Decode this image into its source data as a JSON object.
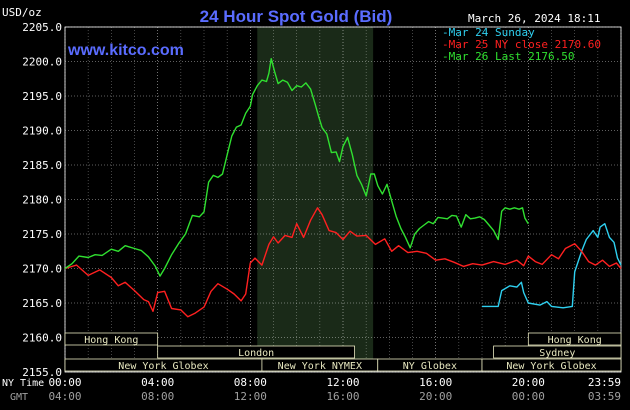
{
  "header": {
    "title": "24 Hour Spot Gold (Bid)",
    "timestamp": "March 26, 2024 18:11",
    "site": "www.kitco.com",
    "unit": "USD/oz"
  },
  "colors": {
    "sunday": "#2fd0f0",
    "close": "#ff2020",
    "last": "#30e030",
    "title": "#5a6cff",
    "grid": "#ffffff",
    "session_fill": "#1a2a18",
    "band_bg": "#000000",
    "band_text": "#e8e8c0",
    "axis_text": "#ffffff",
    "gmt_text": "#a0a0a0"
  },
  "chart_data": {
    "type": "line",
    "title": "24 Hour Spot Gold (Bid)",
    "ylabel": "USD/oz",
    "ylim": [
      2155,
      2205
    ],
    "y_ticks": [
      2155,
      2160,
      2165,
      2170,
      2175,
      2180,
      2185,
      2190,
      2195,
      2200,
      2205
    ],
    "y_tick_labels": [
      "2155.0",
      "2160.0",
      "2165.0",
      "2170.0",
      "2175.0",
      "2180.0",
      "2185.0",
      "2190.0",
      "2195.0",
      "2200.0",
      "2205.0"
    ],
    "xlim": [
      0,
      24
    ],
    "x_ticks": [
      0,
      4,
      8,
      12,
      16,
      20,
      24
    ],
    "x_tick_labels_ny": [
      "00:00",
      "04:00",
      "08:00",
      "12:00",
      "16:00",
      "20:00",
      "23:59"
    ],
    "x_tick_labels_gmt": [
      "04:00",
      "08:00",
      "12:00",
      "16:00",
      "20:00",
      "00:00",
      "03:59"
    ],
    "row_label_ny": "NY Time",
    "row_label_gmt": "GMT",
    "legend_position": "top-right",
    "grid": true,
    "session_shade": [
      8.3,
      13.3
    ],
    "series": [
      {
        "name": "Mar 24 Sunday",
        "color_key": "sunday",
        "points": [
          [
            18.0,
            2164.5
          ],
          [
            18.7,
            2164.5
          ],
          [
            18.85,
            2166.8
          ],
          [
            19.2,
            2167.5
          ],
          [
            19.5,
            2167.3
          ],
          [
            19.7,
            2168.0
          ],
          [
            19.8,
            2166.5
          ],
          [
            20.0,
            2165.0
          ],
          [
            20.5,
            2164.7
          ],
          [
            20.8,
            2165.2
          ],
          [
            21.0,
            2164.5
          ],
          [
            21.5,
            2164.3
          ],
          [
            21.9,
            2164.5
          ],
          [
            22.0,
            2169.5
          ],
          [
            22.3,
            2172.5
          ],
          [
            22.5,
            2174.2
          ],
          [
            22.8,
            2175.5
          ],
          [
            23.0,
            2174.5
          ],
          [
            23.1,
            2176.0
          ],
          [
            23.3,
            2176.5
          ],
          [
            23.5,
            2174.5
          ],
          [
            23.7,
            2173.8
          ],
          [
            23.85,
            2171.5
          ],
          [
            24.0,
            2170.5
          ]
        ]
      },
      {
        "name": "Mar 25 NY close 2170.60",
        "color_key": "close",
        "points": [
          [
            0.0,
            2170.0
          ],
          [
            0.5,
            2170.5
          ],
          [
            1.0,
            2169.0
          ],
          [
            1.5,
            2169.8
          ],
          [
            2.0,
            2168.7
          ],
          [
            2.3,
            2167.5
          ],
          [
            2.6,
            2168.0
          ],
          [
            3.0,
            2166.8
          ],
          [
            3.4,
            2165.5
          ],
          [
            3.6,
            2165.2
          ],
          [
            3.8,
            2163.8
          ],
          [
            4.0,
            2166.5
          ],
          [
            4.3,
            2166.7
          ],
          [
            4.6,
            2164.2
          ],
          [
            5.0,
            2164.0
          ],
          [
            5.3,
            2163.0
          ],
          [
            5.6,
            2163.5
          ],
          [
            6.0,
            2164.4
          ],
          [
            6.3,
            2166.7
          ],
          [
            6.6,
            2167.8
          ],
          [
            7.0,
            2167.0
          ],
          [
            7.3,
            2166.3
          ],
          [
            7.6,
            2165.3
          ],
          [
            7.8,
            2166.3
          ],
          [
            8.0,
            2170.8
          ],
          [
            8.2,
            2171.5
          ],
          [
            8.5,
            2170.5
          ],
          [
            8.8,
            2173.5
          ],
          [
            9.0,
            2174.6
          ],
          [
            9.2,
            2173.7
          ],
          [
            9.5,
            2174.8
          ],
          [
            9.8,
            2174.5
          ],
          [
            10.0,
            2176.5
          ],
          [
            10.3,
            2174.5
          ],
          [
            10.6,
            2177.0
          ],
          [
            10.9,
            2178.8
          ],
          [
            11.1,
            2177.8
          ],
          [
            11.4,
            2175.5
          ],
          [
            11.7,
            2175.2
          ],
          [
            12.0,
            2174.2
          ],
          [
            12.3,
            2175.4
          ],
          [
            12.6,
            2174.7
          ],
          [
            13.0,
            2174.8
          ],
          [
            13.4,
            2173.5
          ],
          [
            13.8,
            2174.3
          ],
          [
            14.1,
            2172.5
          ],
          [
            14.4,
            2173.3
          ],
          [
            14.8,
            2172.3
          ],
          [
            15.2,
            2172.5
          ],
          [
            15.6,
            2172.2
          ],
          [
            16.0,
            2171.2
          ],
          [
            16.4,
            2171.4
          ],
          [
            16.8,
            2170.9
          ],
          [
            17.2,
            2170.3
          ],
          [
            17.6,
            2170.7
          ],
          [
            18.0,
            2170.5
          ],
          [
            18.5,
            2171.0
          ],
          [
            19.0,
            2170.6
          ],
          [
            19.5,
            2171.2
          ],
          [
            19.8,
            2170.4
          ],
          [
            20.0,
            2171.8
          ],
          [
            20.3,
            2171.0
          ],
          [
            20.6,
            2170.6
          ],
          [
            21.0,
            2172.0
          ],
          [
            21.3,
            2171.4
          ],
          [
            21.6,
            2172.9
          ],
          [
            22.0,
            2173.6
          ],
          [
            22.3,
            2172.5
          ],
          [
            22.6,
            2171.0
          ],
          [
            22.9,
            2170.5
          ],
          [
            23.2,
            2171.2
          ],
          [
            23.5,
            2170.3
          ],
          [
            23.8,
            2170.8
          ],
          [
            24.0,
            2170.0
          ]
        ]
      },
      {
        "name": "Mar 26 Last 2176.50",
        "color_key": "last",
        "points": [
          [
            0.0,
            2170.0
          ],
          [
            0.3,
            2170.7
          ],
          [
            0.6,
            2171.8
          ],
          [
            1.0,
            2171.6
          ],
          [
            1.3,
            2172.0
          ],
          [
            1.6,
            2171.9
          ],
          [
            2.0,
            2172.8
          ],
          [
            2.3,
            2172.5
          ],
          [
            2.6,
            2173.3
          ],
          [
            3.0,
            2172.9
          ],
          [
            3.3,
            2172.6
          ],
          [
            3.6,
            2171.7
          ],
          [
            3.9,
            2170.3
          ],
          [
            4.1,
            2168.9
          ],
          [
            4.3,
            2170.0
          ],
          [
            4.6,
            2172.0
          ],
          [
            4.9,
            2173.6
          ],
          [
            5.2,
            2175.0
          ],
          [
            5.5,
            2177.7
          ],
          [
            5.8,
            2177.5
          ],
          [
            6.0,
            2178.2
          ],
          [
            6.2,
            2182.5
          ],
          [
            6.4,
            2183.5
          ],
          [
            6.6,
            2183.2
          ],
          [
            6.8,
            2183.7
          ],
          [
            7.0,
            2186.5
          ],
          [
            7.2,
            2189.2
          ],
          [
            7.4,
            2190.5
          ],
          [
            7.6,
            2190.8
          ],
          [
            7.8,
            2192.5
          ],
          [
            8.0,
            2193.5
          ],
          [
            8.1,
            2195.2
          ],
          [
            8.3,
            2196.5
          ],
          [
            8.5,
            2197.3
          ],
          [
            8.7,
            2197.1
          ],
          [
            8.8,
            2198.3
          ],
          [
            8.9,
            2200.4
          ],
          [
            9.05,
            2198.5
          ],
          [
            9.2,
            2196.8
          ],
          [
            9.4,
            2197.3
          ],
          [
            9.6,
            2197.0
          ],
          [
            9.8,
            2195.8
          ],
          [
            10.0,
            2196.5
          ],
          [
            10.2,
            2196.3
          ],
          [
            10.4,
            2196.9
          ],
          [
            10.6,
            2196.0
          ],
          [
            10.8,
            2193.8
          ],
          [
            10.95,
            2192.0
          ],
          [
            11.1,
            2190.4
          ],
          [
            11.3,
            2189.5
          ],
          [
            11.5,
            2186.8
          ],
          [
            11.7,
            2186.9
          ],
          [
            11.85,
            2185.5
          ],
          [
            12.0,
            2187.7
          ],
          [
            12.2,
            2189.0
          ],
          [
            12.4,
            2186.5
          ],
          [
            12.6,
            2183.5
          ],
          [
            12.8,
            2182.2
          ],
          [
            13.0,
            2180.5
          ],
          [
            13.2,
            2183.7
          ],
          [
            13.35,
            2183.7
          ],
          [
            13.5,
            2182.0
          ],
          [
            13.7,
            2180.8
          ],
          [
            13.9,
            2182.2
          ],
          [
            14.1,
            2179.8
          ],
          [
            14.3,
            2177.5
          ],
          [
            14.5,
            2175.8
          ],
          [
            14.7,
            2174.5
          ],
          [
            14.9,
            2173.0
          ],
          [
            15.1,
            2175.0
          ],
          [
            15.3,
            2175.8
          ],
          [
            15.5,
            2176.3
          ],
          [
            15.7,
            2176.8
          ],
          [
            15.9,
            2176.5
          ],
          [
            16.1,
            2177.4
          ],
          [
            16.3,
            2177.3
          ],
          [
            16.5,
            2177.2
          ],
          [
            16.7,
            2177.7
          ],
          [
            16.9,
            2177.6
          ],
          [
            17.1,
            2176.0
          ],
          [
            17.3,
            2177.8
          ],
          [
            17.5,
            2177.2
          ],
          [
            17.7,
            2177.3
          ],
          [
            17.9,
            2177.5
          ],
          [
            18.1,
            2177.1
          ],
          [
            18.3,
            2176.3
          ],
          [
            18.5,
            2175.5
          ],
          [
            18.7,
            2174.2
          ],
          [
            18.85,
            2178.3
          ],
          [
            19.0,
            2178.8
          ],
          [
            19.2,
            2178.6
          ],
          [
            19.4,
            2178.8
          ],
          [
            19.6,
            2178.6
          ],
          [
            19.75,
            2178.8
          ],
          [
            19.85,
            2177.3
          ],
          [
            20.0,
            2176.5
          ]
        ]
      }
    ],
    "session_bands": [
      {
        "name": "Hong Kong",
        "row": 0,
        "x0": 0.0,
        "x1": 4.0
      },
      {
        "name": "London",
        "row": 1,
        "x0": 4.0,
        "x1": 12.5
      },
      {
        "name": "New York Globex",
        "row": 2,
        "x0": 0.0,
        "x1": 8.5
      },
      {
        "name": "New York NYMEX",
        "row": 2,
        "x0": 8.5,
        "x1": 13.5
      },
      {
        "name": "NY Globex",
        "row": 2,
        "x0": 13.5,
        "x1": 18.0
      },
      {
        "name": "Hong Kong",
        "row": 0,
        "x0": 20.0,
        "x1": 24.0
      },
      {
        "name": "Sydney",
        "row": 1,
        "x0": 18.5,
        "x1": 24.0
      },
      {
        "name": "New York Globex",
        "row": 2,
        "x0": 18.0,
        "x1": 24.0
      }
    ]
  }
}
